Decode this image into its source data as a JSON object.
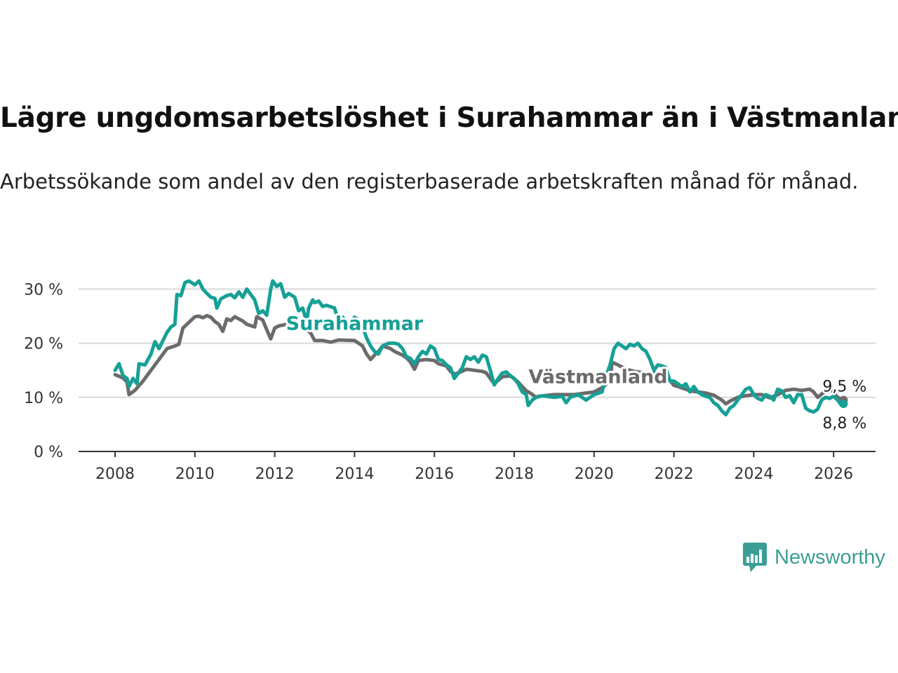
{
  "title": "Lägre ungdomsarbetslöshet i Surahammar än i Västmanland",
  "subtitle": "Arbetssökande som andel av den registerbaserade arbetskraften månad för månad.",
  "brand": {
    "name": "Newsworthy",
    "icon": "newsworthy-chart-bubble-icon",
    "color": "#3a9e95"
  },
  "chart_data": {
    "type": "line",
    "title": "Lägre ungdomsarbetslöshet i Surahammar än i Västmanland",
    "xlabel": "",
    "ylabel": "",
    "xlim": [
      2007.5,
      2027.1
    ],
    "ylim": [
      0,
      32
    ],
    "yticks": [
      0,
      10,
      20,
      30
    ],
    "ytick_labels": [
      "0 %",
      "10 %",
      "20 %",
      "30 %"
    ],
    "xticks": [
      2008,
      2010,
      2012,
      2014,
      2016,
      2018,
      2020,
      2022,
      2024,
      2026
    ],
    "xtick_labels": [
      "2008",
      "2010",
      "2012",
      "2014",
      "2016",
      "2018",
      "2020",
      "2022",
      "2024",
      "2026"
    ],
    "grid": true,
    "legend": "inline labels",
    "series": [
      {
        "name": "Västmanland",
        "color": "#6b6b6b",
        "end_label": "9,5 %",
        "points": [
          [
            2008.0,
            14.2
          ],
          [
            2008.2,
            13.6
          ],
          [
            2008.3,
            12.8
          ],
          [
            2008.35,
            10.5
          ],
          [
            2008.5,
            11.3
          ],
          [
            2008.7,
            13.0
          ],
          [
            2008.9,
            15.0
          ],
          [
            2009.1,
            17.0
          ],
          [
            2009.3,
            19.0
          ],
          [
            2009.5,
            19.5
          ],
          [
            2009.6,
            19.8
          ],
          [
            2009.7,
            22.8
          ],
          [
            2009.8,
            23.5
          ],
          [
            2009.9,
            24.2
          ],
          [
            2010.0,
            24.9
          ],
          [
            2010.1,
            25.0
          ],
          [
            2010.2,
            24.7
          ],
          [
            2010.3,
            25.1
          ],
          [
            2010.4,
            24.8
          ],
          [
            2010.5,
            24.0
          ],
          [
            2010.6,
            23.5
          ],
          [
            2010.7,
            22.2
          ],
          [
            2010.8,
            24.5
          ],
          [
            2010.9,
            24.2
          ],
          [
            2011.0,
            24.9
          ],
          [
            2011.2,
            24.1
          ],
          [
            2011.3,
            23.5
          ],
          [
            2011.5,
            23.0
          ],
          [
            2011.55,
            24.9
          ],
          [
            2011.7,
            24.3
          ],
          [
            2011.8,
            22.5
          ],
          [
            2011.9,
            20.8
          ],
          [
            2012.0,
            22.8
          ],
          [
            2012.1,
            23.2
          ],
          [
            2012.3,
            23.5
          ],
          [
            2012.4,
            23.9
          ],
          [
            2012.5,
            24.2
          ],
          [
            2012.6,
            23.0
          ],
          [
            2012.8,
            22.5
          ],
          [
            2012.9,
            21.9
          ],
          [
            2013.0,
            20.5
          ],
          [
            2013.2,
            20.5
          ],
          [
            2013.4,
            20.2
          ],
          [
            2013.6,
            20.6
          ],
          [
            2014.0,
            20.5
          ],
          [
            2014.1,
            20.0
          ],
          [
            2014.2,
            19.5
          ],
          [
            2014.3,
            18.0
          ],
          [
            2014.4,
            17.0
          ],
          [
            2014.5,
            17.8
          ],
          [
            2014.6,
            18.5
          ],
          [
            2014.7,
            19.5
          ],
          [
            2014.9,
            19.0
          ],
          [
            2015.0,
            18.5
          ],
          [
            2015.2,
            17.8
          ],
          [
            2015.3,
            17.3
          ],
          [
            2015.4,
            16.5
          ],
          [
            2015.5,
            15.2
          ],
          [
            2015.6,
            16.8
          ],
          [
            2015.8,
            17.0
          ],
          [
            2016.0,
            16.8
          ],
          [
            2016.1,
            16.2
          ],
          [
            2016.3,
            15.8
          ],
          [
            2016.4,
            14.8
          ],
          [
            2016.5,
            14.3
          ],
          [
            2016.6,
            14.5
          ],
          [
            2016.8,
            15.2
          ],
          [
            2017.0,
            15.0
          ],
          [
            2017.2,
            14.8
          ],
          [
            2017.3,
            14.5
          ],
          [
            2017.5,
            12.5
          ],
          [
            2017.7,
            13.8
          ],
          [
            2017.9,
            14.0
          ],
          [
            2018.1,
            12.8
          ],
          [
            2018.2,
            12.0
          ],
          [
            2018.3,
            11.2
          ],
          [
            2018.4,
            10.8
          ],
          [
            2018.55,
            10.0
          ],
          [
            2018.6,
            10.2
          ],
          [
            2019.0,
            10.5
          ],
          [
            2019.5,
            10.5
          ],
          [
            2020.0,
            11.0
          ],
          [
            2020.2,
            11.8
          ],
          [
            2020.4,
            13.0
          ],
          [
            2020.45,
            16.5
          ],
          [
            2020.6,
            16.0
          ],
          [
            2020.8,
            15.2
          ],
          [
            2021.0,
            14.8
          ],
          [
            2021.2,
            14.6
          ],
          [
            2021.4,
            14.2
          ],
          [
            2021.5,
            14.5
          ],
          [
            2021.6,
            14.3
          ],
          [
            2021.75,
            14.5
          ],
          [
            2022.0,
            12.2
          ],
          [
            2022.1,
            12.0
          ],
          [
            2022.3,
            11.5
          ],
          [
            2022.4,
            11.2
          ],
          [
            2022.6,
            11.0
          ],
          [
            2022.8,
            10.8
          ],
          [
            2023.0,
            10.4
          ],
          [
            2023.2,
            9.5
          ],
          [
            2023.3,
            8.8
          ],
          [
            2023.4,
            9.3
          ],
          [
            2023.6,
            10.0
          ],
          [
            2023.8,
            10.3
          ],
          [
            2024.0,
            10.5
          ],
          [
            2024.2,
            10.5
          ],
          [
            2024.4,
            9.9
          ],
          [
            2024.6,
            10.5
          ],
          [
            2024.8,
            11.3
          ],
          [
            2025.0,
            11.5
          ],
          [
            2025.2,
            11.3
          ],
          [
            2025.4,
            11.5
          ],
          [
            2025.5,
            11.0
          ],
          [
            2025.6,
            10.0
          ],
          [
            2025.8,
            11.2
          ],
          [
            2025.9,
            11.8
          ],
          [
            2026.1,
            10.0
          ],
          [
            2026.25,
            9.5
          ]
        ]
      },
      {
        "name": "Surahammar",
        "color": "#16a096",
        "end_label": "8,8 %",
        "points": [
          [
            2008.0,
            15.0
          ],
          [
            2008.1,
            16.2
          ],
          [
            2008.2,
            14.0
          ],
          [
            2008.3,
            13.5
          ],
          [
            2008.35,
            12.0
          ],
          [
            2008.45,
            13.5
          ],
          [
            2008.55,
            12.5
          ],
          [
            2008.6,
            16.2
          ],
          [
            2008.75,
            16.0
          ],
          [
            2008.9,
            18.0
          ],
          [
            2009.0,
            20.3
          ],
          [
            2009.1,
            19.0
          ],
          [
            2009.2,
            20.5
          ],
          [
            2009.3,
            22.0
          ],
          [
            2009.4,
            23.0
          ],
          [
            2009.5,
            23.5
          ],
          [
            2009.55,
            29.0
          ],
          [
            2009.65,
            28.8
          ],
          [
            2009.75,
            31.2
          ],
          [
            2009.85,
            31.5
          ],
          [
            2010.0,
            30.8
          ],
          [
            2010.1,
            31.5
          ],
          [
            2010.2,
            30.0
          ],
          [
            2010.3,
            29.2
          ],
          [
            2010.4,
            28.5
          ],
          [
            2010.5,
            28.3
          ],
          [
            2010.55,
            26.5
          ],
          [
            2010.65,
            28.2
          ],
          [
            2010.8,
            28.8
          ],
          [
            2010.9,
            29.0
          ],
          [
            2011.0,
            28.4
          ],
          [
            2011.1,
            29.5
          ],
          [
            2011.2,
            28.5
          ],
          [
            2011.3,
            30.0
          ],
          [
            2011.4,
            29.0
          ],
          [
            2011.5,
            28.0
          ],
          [
            2011.6,
            25.5
          ],
          [
            2011.7,
            26.0
          ],
          [
            2011.8,
            25.2
          ],
          [
            2011.9,
            30.0
          ],
          [
            2011.95,
            31.5
          ],
          [
            2012.05,
            30.5
          ],
          [
            2012.15,
            31.0
          ],
          [
            2012.25,
            28.5
          ],
          [
            2012.35,
            29.2
          ],
          [
            2012.5,
            28.5
          ],
          [
            2012.6,
            26.0
          ],
          [
            2012.7,
            26.5
          ],
          [
            2012.8,
            24.0
          ],
          [
            2012.85,
            26.5
          ],
          [
            2012.95,
            28.0
          ],
          [
            2013.0,
            27.5
          ],
          [
            2013.1,
            27.8
          ],
          [
            2013.2,
            26.8
          ],
          [
            2013.3,
            27.0
          ],
          [
            2013.5,
            26.5
          ],
          [
            2013.6,
            24.0
          ],
          [
            2013.7,
            24.8
          ],
          [
            2013.9,
            23.5
          ],
          [
            2014.0,
            24.8
          ],
          [
            2014.1,
            24.3
          ],
          [
            2014.2,
            23.0
          ],
          [
            2014.3,
            21.0
          ],
          [
            2014.4,
            19.5
          ],
          [
            2014.5,
            18.5
          ],
          [
            2014.6,
            18.0
          ],
          [
            2014.7,
            19.5
          ],
          [
            2014.85,
            20.0
          ],
          [
            2015.0,
            20.0
          ],
          [
            2015.1,
            19.8
          ],
          [
            2015.2,
            19.0
          ],
          [
            2015.3,
            17.5
          ],
          [
            2015.4,
            17.2
          ],
          [
            2015.5,
            16.2
          ],
          [
            2015.6,
            17.5
          ],
          [
            2015.7,
            18.5
          ],
          [
            2015.8,
            18.0
          ],
          [
            2015.9,
            19.5
          ],
          [
            2016.0,
            19.0
          ],
          [
            2016.1,
            17.0
          ],
          [
            2016.2,
            16.8
          ],
          [
            2016.3,
            16.0
          ],
          [
            2016.4,
            15.5
          ],
          [
            2016.5,
            13.5
          ],
          [
            2016.6,
            14.5
          ],
          [
            2016.7,
            15.5
          ],
          [
            2016.8,
            17.5
          ],
          [
            2016.9,
            17.0
          ],
          [
            2017.0,
            17.5
          ],
          [
            2017.1,
            16.5
          ],
          [
            2017.2,
            17.8
          ],
          [
            2017.3,
            17.5
          ],
          [
            2017.4,
            15.0
          ],
          [
            2017.5,
            12.3
          ],
          [
            2017.6,
            13.5
          ],
          [
            2017.7,
            14.5
          ],
          [
            2017.8,
            14.7
          ],
          [
            2017.9,
            14.0
          ],
          [
            2018.0,
            13.5
          ],
          [
            2018.1,
            12.5
          ],
          [
            2018.2,
            11.0
          ],
          [
            2018.3,
            10.5
          ],
          [
            2018.35,
            8.5
          ],
          [
            2018.45,
            9.5
          ],
          [
            2018.55,
            10.0
          ],
          [
            2018.7,
            10.3
          ],
          [
            2019.0,
            10.0
          ],
          [
            2019.2,
            10.2
          ],
          [
            2019.3,
            9.0
          ],
          [
            2019.4,
            10.0
          ],
          [
            2019.6,
            10.5
          ],
          [
            2019.8,
            9.5
          ],
          [
            2019.9,
            10.0
          ],
          [
            2020.0,
            10.5
          ],
          [
            2020.2,
            11.0
          ],
          [
            2020.3,
            14.0
          ],
          [
            2020.4,
            16.0
          ],
          [
            2020.5,
            19.0
          ],
          [
            2020.6,
            20.0
          ],
          [
            2020.7,
            19.5
          ],
          [
            2020.8,
            19.0
          ],
          [
            2020.9,
            19.8
          ],
          [
            2021.0,
            19.5
          ],
          [
            2021.1,
            20.0
          ],
          [
            2021.2,
            19.0
          ],
          [
            2021.3,
            18.5
          ],
          [
            2021.4,
            17.0
          ],
          [
            2021.5,
            15.0
          ],
          [
            2021.6,
            16.0
          ],
          [
            2021.7,
            15.8
          ],
          [
            2021.8,
            15.5
          ],
          [
            2021.9,
            13.0
          ],
          [
            2022.0,
            13.0
          ],
          [
            2022.1,
            12.5
          ],
          [
            2022.2,
            12.0
          ],
          [
            2022.3,
            12.5
          ],
          [
            2022.4,
            11.0
          ],
          [
            2022.5,
            12.0
          ],
          [
            2022.6,
            11.0
          ],
          [
            2022.7,
            10.5
          ],
          [
            2022.8,
            10.2
          ],
          [
            2022.9,
            10.0
          ],
          [
            2023.0,
            9.0
          ],
          [
            2023.1,
            8.5
          ],
          [
            2023.2,
            7.5
          ],
          [
            2023.3,
            6.8
          ],
          [
            2023.4,
            8.0
          ],
          [
            2023.5,
            8.5
          ],
          [
            2023.6,
            9.5
          ],
          [
            2023.7,
            10.5
          ],
          [
            2023.8,
            11.5
          ],
          [
            2023.9,
            11.8
          ],
          [
            2024.0,
            10.5
          ],
          [
            2024.1,
            9.8
          ],
          [
            2024.2,
            9.5
          ],
          [
            2024.3,
            10.5
          ],
          [
            2024.4,
            10.2
          ],
          [
            2024.5,
            9.5
          ],
          [
            2024.6,
            11.5
          ],
          [
            2024.7,
            11.2
          ],
          [
            2024.8,
            10.0
          ],
          [
            2024.9,
            10.3
          ],
          [
            2025.0,
            9.0
          ],
          [
            2025.1,
            10.5
          ],
          [
            2025.2,
            10.5
          ],
          [
            2025.3,
            8.0
          ],
          [
            2025.4,
            7.5
          ],
          [
            2025.5,
            7.3
          ],
          [
            2025.6,
            7.8
          ],
          [
            2025.7,
            9.5
          ],
          [
            2025.8,
            10.0
          ],
          [
            2025.9,
            9.8
          ],
          [
            2026.0,
            10.2
          ],
          [
            2026.1,
            9.5
          ],
          [
            2026.2,
            8.5
          ],
          [
            2026.25,
            8.8
          ]
        ]
      }
    ],
    "annotations": [
      {
        "text": "Surahammar",
        "series": "Surahammar",
        "at": [
          2014.0,
          22.5
        ]
      },
      {
        "text": "Västmanland",
        "series": "Västmanland",
        "at": [
          2020.1,
          12.6
        ]
      }
    ]
  }
}
